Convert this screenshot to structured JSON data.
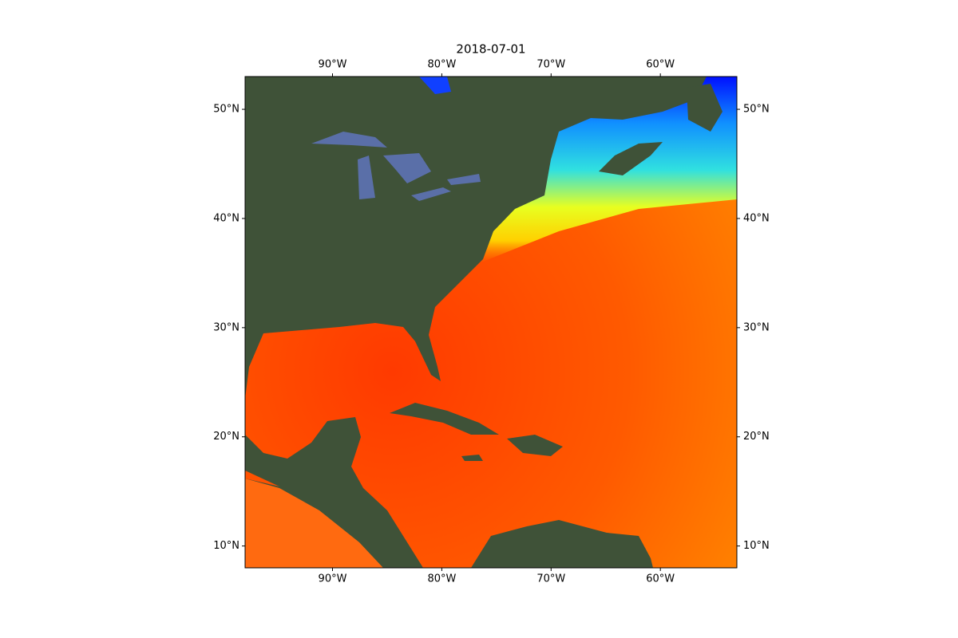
{
  "chart_data": {
    "type": "map",
    "title": "2018-07-01",
    "xlim": [
      -98,
      -53
    ],
    "ylim": [
      8,
      53
    ],
    "xticks": [
      {
        "value": -90,
        "label": "90°W"
      },
      {
        "value": -80,
        "label": "80°W"
      },
      {
        "value": -70,
        "label": "70°W"
      },
      {
        "value": -60,
        "label": "60°W"
      }
    ],
    "yticks": [
      {
        "value": 10,
        "label": "10°N"
      },
      {
        "value": 20,
        "label": "20°N"
      },
      {
        "value": 30,
        "label": "30°N"
      },
      {
        "value": 40,
        "label": "40°N"
      },
      {
        "value": 50,
        "label": "50°N"
      }
    ]
  }
}
